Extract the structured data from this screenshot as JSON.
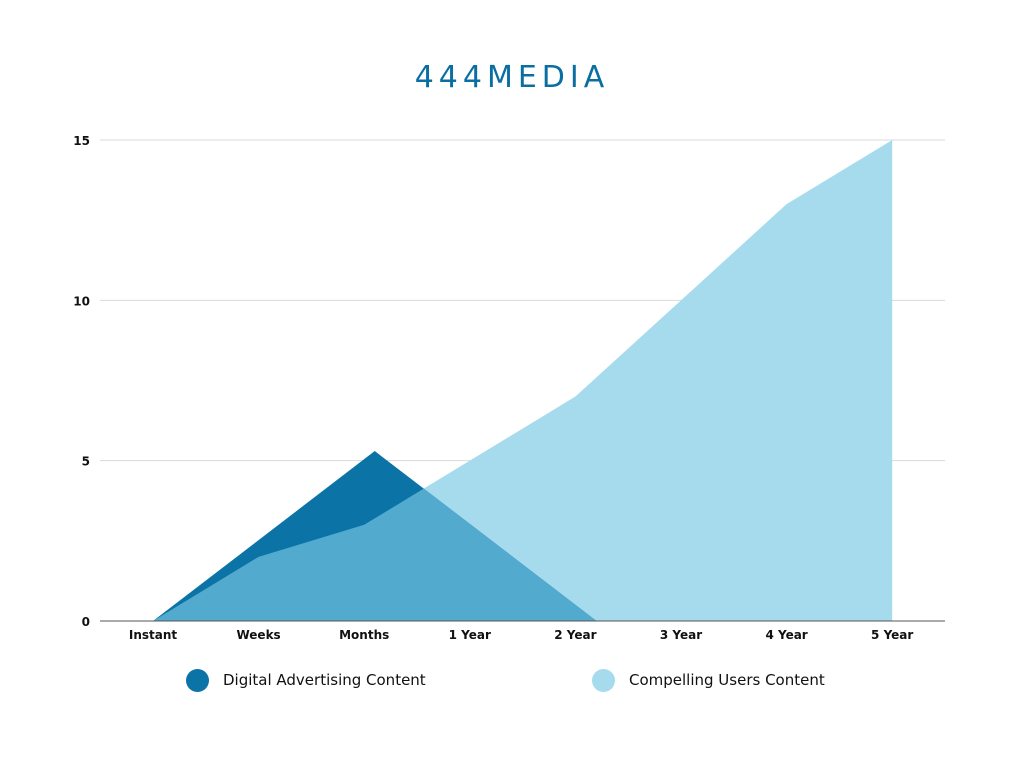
{
  "logo": {
    "text": "444MEDIA",
    "color": "#0a6fa0"
  },
  "chart_data": {
    "type": "area",
    "title": "",
    "xlabel": "",
    "ylabel": "",
    "ylim": [
      0,
      15
    ],
    "yticks": [
      "0",
      "5",
      "10",
      "15"
    ],
    "grid": true,
    "legend_position": "bottom",
    "categories": [
      "Instant",
      "Weeks",
      "Months",
      "1 Year",
      "2 Year",
      "3 Year",
      "4 Year",
      "5 Year"
    ],
    "series": [
      {
        "name": "Compelling Users Content",
        "color": "#a5dbec",
        "x": [
          0,
          1,
          2,
          3,
          4,
          5,
          6,
          7
        ],
        "values": [
          0,
          2,
          3,
          5,
          7,
          10,
          13,
          15
        ]
      },
      {
        "name": "Digital Advertising Content",
        "color": "#0b73a6",
        "x": [
          0,
          2.1,
          4.2
        ],
        "values": [
          0,
          5.3,
          0
        ]
      }
    ],
    "overlap_color": "#52abcf"
  }
}
